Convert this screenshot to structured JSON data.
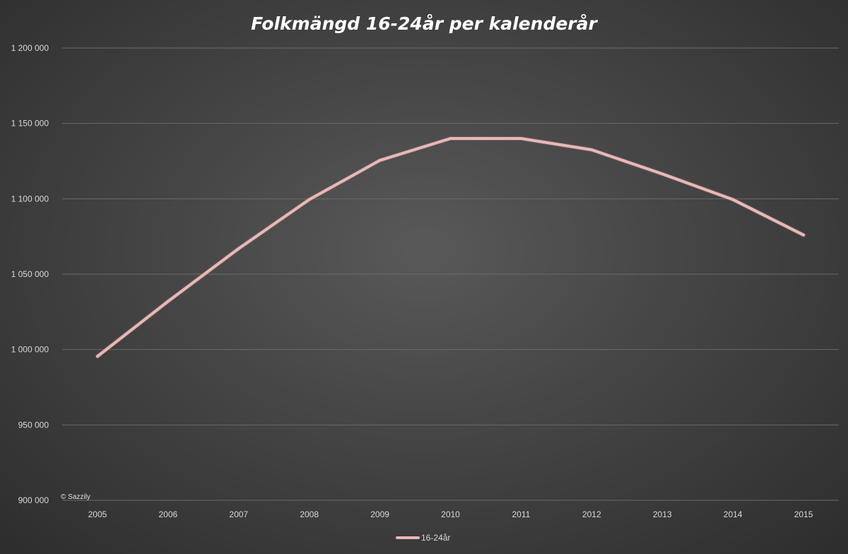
{
  "chart_data": {
    "type": "line",
    "title": "Folkmängd 16-24år per kalenderår",
    "xlabel": "",
    "ylabel": "",
    "categories": [
      "2005",
      "2006",
      "2007",
      "2008",
      "2009",
      "2010",
      "2011",
      "2012",
      "2013",
      "2014",
      "2015"
    ],
    "series": [
      {
        "name": "16-24år",
        "color": "#e8b9b7",
        "values": [
          995500,
          1032000,
          1067000,
          1099500,
          1125500,
          1140000,
          1140000,
          1132500,
          1116500,
          1099500,
          1076000
        ]
      }
    ],
    "ylim": [
      900000,
      1200000
    ],
    "yticks": [
      900000,
      950000,
      1000000,
      1050000,
      1100000,
      1150000,
      1200000
    ],
    "ytick_labels": [
      "900 000",
      "950 000",
      "1 000 000",
      "1 050 000",
      "1 100 000",
      "1 150 000",
      "1 200 000"
    ],
    "grid": true,
    "legend_position": "bottom"
  },
  "copyright": "© Sazzily",
  "colors": {
    "gridline": "#6a6a6a",
    "text": "#d9d9d9",
    "title": "#ffffff"
  }
}
